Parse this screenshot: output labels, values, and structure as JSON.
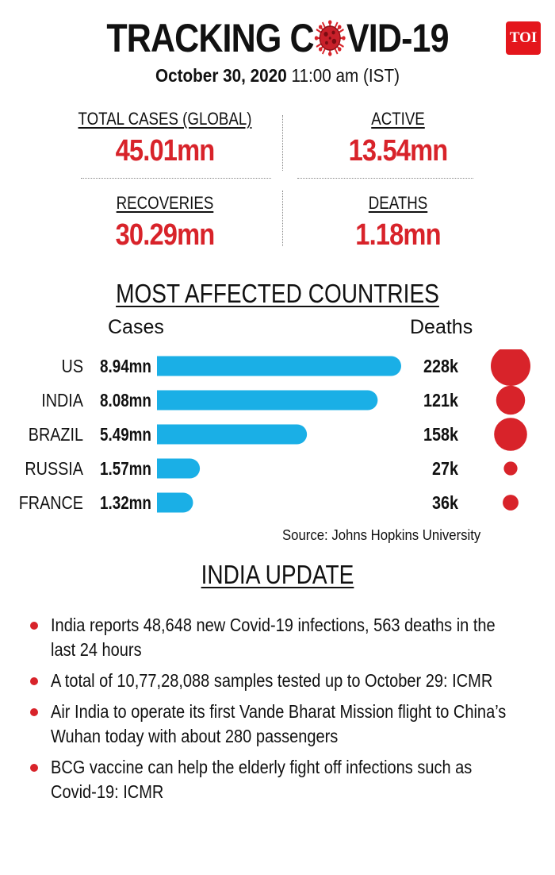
{
  "header": {
    "title_left": "TRACKING C",
    "title_right": "VID-19",
    "virus_icon": "coronavirus-icon",
    "logo_text": "TOI",
    "date": "October 30, 2020",
    "time": "11:00 am (IST)"
  },
  "stats": {
    "total_cases": {
      "label": "TOTAL CASES (GLOBAL)",
      "value": "45.01mn"
    },
    "active": {
      "label": "ACTIVE",
      "value": "13.54mn"
    },
    "recoveries": {
      "label": "RECOVERIES",
      "value": "30.29mn"
    },
    "deaths": {
      "label": "DEATHS",
      "value": "1.18mn"
    }
  },
  "colors": {
    "accent_red": "#d8232a",
    "bar_blue": "#1aafe6",
    "logo_red": "#e4161c"
  },
  "chart_data": {
    "type": "bar",
    "title": "MOST AFFECTED COUNTRIES",
    "cases_header": "Cases",
    "deaths_header": "Deaths",
    "categories": [
      "US",
      "INDIA",
      "BRAZIL",
      "RUSSIA",
      "FRANCE"
    ],
    "series": [
      {
        "name": "Cases",
        "values": [
          8.94,
          8.08,
          5.49,
          1.57,
          1.32
        ],
        "labels": [
          "8.94mn",
          "8.08mn",
          "5.49mn",
          "1.57mn",
          "1.32mn"
        ]
      },
      {
        "name": "Deaths",
        "values": [
          228,
          121,
          158,
          27,
          36
        ],
        "labels": [
          "228k",
          "121k",
          "158k",
          "27k",
          "36k"
        ]
      }
    ],
    "source": "Source: Johns Hopkins University"
  },
  "india_update": {
    "title": "INDIA UPDATE",
    "items": [
      "India reports 48,648 new Covid-19 infections, 563 deaths in the last 24 hours",
      "A total of 10,77,28,088 samples tested up to October 29: ICMR",
      "Air India to operate its first Vande Bharat Mission flight to China’s Wuhan today with about 280 passengers",
      "BCG vaccine can help the elderly fight off infections such as Covid-19: ICMR"
    ]
  }
}
